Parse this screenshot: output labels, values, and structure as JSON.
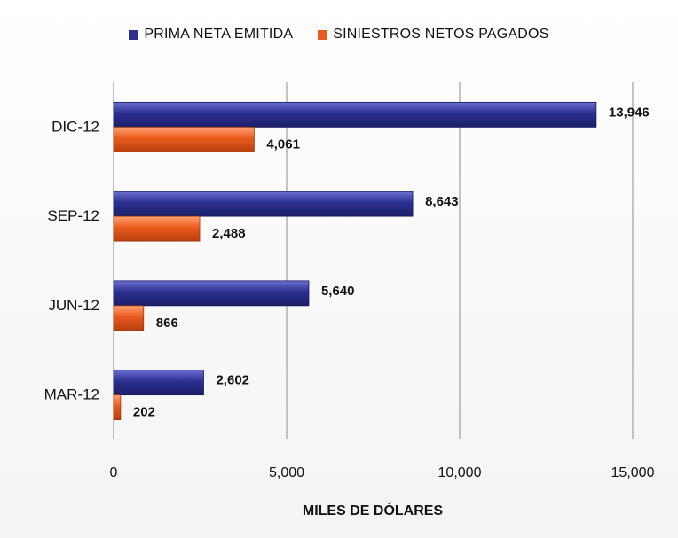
{
  "chart_data": {
    "type": "bar",
    "orientation": "horizontal",
    "categories": [
      "MAR-12",
      "JUN-12",
      "SEP-12",
      "DIC-12"
    ],
    "series": [
      {
        "name": "PRIMA NETA EMITIDA",
        "values": [
          2602,
          5640,
          8643,
          13946
        ],
        "labels": [
          "2,602",
          "5,640",
          "8,643",
          "13,946"
        ],
        "color": "#2b2f8f"
      },
      {
        "name": "SINIESTROS NETOS PAGADOS",
        "values": [
          202,
          866,
          2488,
          4061
        ],
        "labels": [
          "202",
          "866",
          "2,488",
          "4,061"
        ],
        "color": "#ea5a1e"
      }
    ],
    "xlabel": "MILES DE DÓLARES",
    "ylabel": "",
    "xlim": [
      0,
      15000
    ],
    "xticks": [
      0,
      5000,
      10000,
      15000
    ],
    "xtick_labels": [
      "0",
      "5,000",
      "10,000",
      "15,000"
    ],
    "grid": "vertical",
    "legend_position": "top-center"
  }
}
